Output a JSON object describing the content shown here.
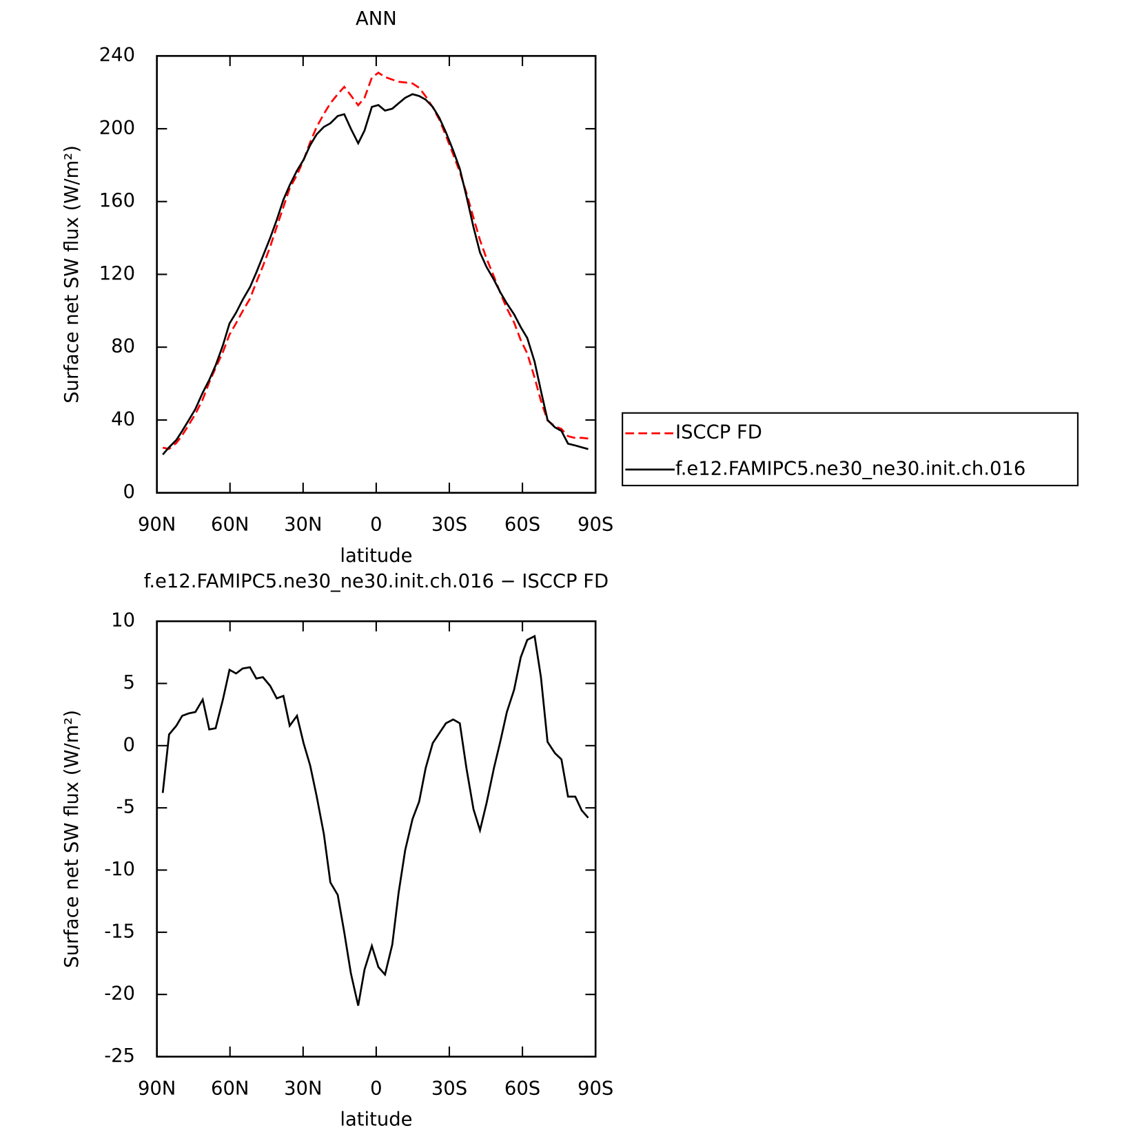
{
  "chart_data": [
    {
      "type": "line",
      "title": "ANN",
      "x_label": "latitude",
      "y_label": "Surface net SW flux (W/m²)",
      "x": [
        87.6,
        85,
        82,
        79.6,
        76.9,
        74.2,
        71.2,
        68.5,
        65.9,
        62.9,
        60.2,
        57.5,
        54.8,
        51.8,
        49.2,
        46.5,
        43.5,
        40.8,
        38.1,
        35.5,
        32.5,
        29.8,
        27.1,
        24.4,
        21.5,
        18.8,
        15.8,
        13.1,
        10.4,
        7.4,
        4.8,
        1.8,
        -0.9,
        -3.6,
        -6.6,
        -9.2,
        -11.9,
        -14.9,
        -17.6,
        -20.3,
        -23.2,
        -25.9,
        -28.6,
        -31.6,
        -34.3,
        -37,
        -39.9,
        -42.6,
        -45.3,
        -48.3,
        -51,
        -53.6,
        -56.6,
        -59.3,
        -62,
        -65,
        -67.6,
        -70.3,
        -73.3,
        -76,
        -78.7,
        -81.7,
        -84.3,
        -87
      ],
      "series": [
        {
          "name": "ISCCP FD",
          "color": "#ff0000",
          "line_style": "dashed",
          "values": [
            24.8,
            24.1,
            27.4,
            31.6,
            37.4,
            43.3,
            51.3,
            60.7,
            68.6,
            77.3,
            86.9,
            93.2,
            99.8,
            106.7,
            115.6,
            124.5,
            135.2,
            146.2,
            157,
            167.4,
            174.6,
            182.8,
            192.6,
            201.1,
            208.1,
            214,
            219,
            223,
            218.3,
            212.9,
            217,
            228.1,
            230.8,
            228.4,
            227,
            225.8,
            225.4,
            224.9,
            222.5,
            217.8,
            211.8,
            205,
            196.2,
            185.9,
            176.2,
            164.8,
            151.1,
            138.8,
            128.6,
            118.8,
            109.6,
            101.3,
            93.5,
            83.9,
            76.5,
            63.2,
            50.5,
            39.7,
            36.6,
            35.1,
            31.1,
            30.1,
            30.2,
            29.8
          ]
        },
        {
          "name": "f.e12.FAMIPC5.ne30_ne30.init.ch.016",
          "color": "#000000",
          "line_style": "solid",
          "values": [
            21,
            25,
            29,
            34,
            40,
            46,
            55,
            62,
            70,
            81,
            93,
            99,
            106,
            113,
            121,
            130,
            140,
            150,
            161,
            169,
            177,
            183,
            191,
            197,
            201,
            203,
            207,
            208,
            200,
            192,
            199,
            212,
            213,
            210,
            211,
            214,
            217,
            219,
            218,
            216,
            212,
            206,
            198,
            188,
            178,
            163,
            146,
            132,
            124,
            117,
            110,
            104,
            98,
            91,
            85,
            72,
            56,
            40,
            36,
            34,
            27,
            26,
            25,
            24
          ]
        }
      ],
      "xlim": [
        90,
        -90
      ],
      "xticks": [
        {
          "value": 90,
          "label": "90N"
        },
        {
          "value": 60,
          "label": "60N"
        },
        {
          "value": 30,
          "label": "30N"
        },
        0,
        {
          "value": -30,
          "label": "30S"
        },
        {
          "value": -60,
          "label": "60S"
        },
        {
          "value": -90,
          "label": "90S"
        }
      ],
      "ylim": [
        0,
        240
      ],
      "yticks": [
        0,
        40,
        80,
        120,
        160,
        200,
        240
      ],
      "legend": "outside-right"
    },
    {
      "type": "line",
      "title": "f.e12.FAMIPC5.ne30_ne30.init.ch.016 − ISCCP FD",
      "x_label": "latitude",
      "y_label": "Surface net SW flux (W/m²)",
      "x": [
        87.6,
        85,
        82,
        79.6,
        76.9,
        74.2,
        71.2,
        68.5,
        65.9,
        62.9,
        60.2,
        57.5,
        54.8,
        51.8,
        49.2,
        46.5,
        43.5,
        40.8,
        38.1,
        35.5,
        32.5,
        29.8,
        27.1,
        24.4,
        21.5,
        18.8,
        15.8,
        13.1,
        10.4,
        7.4,
        4.8,
        1.8,
        -0.9,
        -3.6,
        -6.6,
        -9.2,
        -11.9,
        -14.9,
        -17.6,
        -20.3,
        -23.2,
        -25.9,
        -28.6,
        -31.6,
        -34.3,
        -37,
        -39.9,
        -42.6,
        -45.3,
        -48.3,
        -51,
        -53.6,
        -56.6,
        -59.3,
        -62,
        -65,
        -67.6,
        -70.3,
        -73.3,
        -76,
        -78.7,
        -81.7,
        -84.3,
        -87
      ],
      "series": [
        {
          "color": "#000000",
          "line_style": "solid",
          "values": [
            -3.8,
            0.9,
            1.6,
            2.4,
            2.6,
            2.7,
            3.7,
            1.3,
            1.4,
            3.7,
            6.1,
            5.8,
            6.2,
            6.3,
            5.4,
            5.5,
            4.8,
            3.8,
            4.0,
            1.6,
            2.4,
            0.2,
            -1.6,
            -4.1,
            -7.1,
            -11,
            -12,
            -15,
            -18.3,
            -20.9,
            -18,
            -16.1,
            -17.8,
            -18.4,
            -16,
            -11.8,
            -8.4,
            -5.9,
            -4.5,
            -1.8,
            0.2,
            1.0,
            1.8,
            2.1,
            1.8,
            -1.8,
            -5.1,
            -6.8,
            -4.6,
            -1.8,
            0.4,
            2.7,
            4.5,
            7.1,
            8.5,
            8.8,
            5.5,
            0.3,
            -0.6,
            -1.1,
            -4.1,
            -4.1,
            -5.2,
            -5.8
          ]
        }
      ],
      "xlim": [
        90,
        -90
      ],
      "xticks": [
        {
          "value": 90,
          "label": "90N"
        },
        {
          "value": 60,
          "label": "60N"
        },
        {
          "value": 30,
          "label": "30N"
        },
        0,
        {
          "value": -30,
          "label": "30S"
        },
        {
          "value": -60,
          "label": "60S"
        },
        {
          "value": -90,
          "label": "90S"
        }
      ],
      "ylim": [
        -25,
        10
      ],
      "yticks": [
        -25,
        -20,
        -15,
        -10,
        -5,
        0,
        5,
        10
      ]
    }
  ]
}
